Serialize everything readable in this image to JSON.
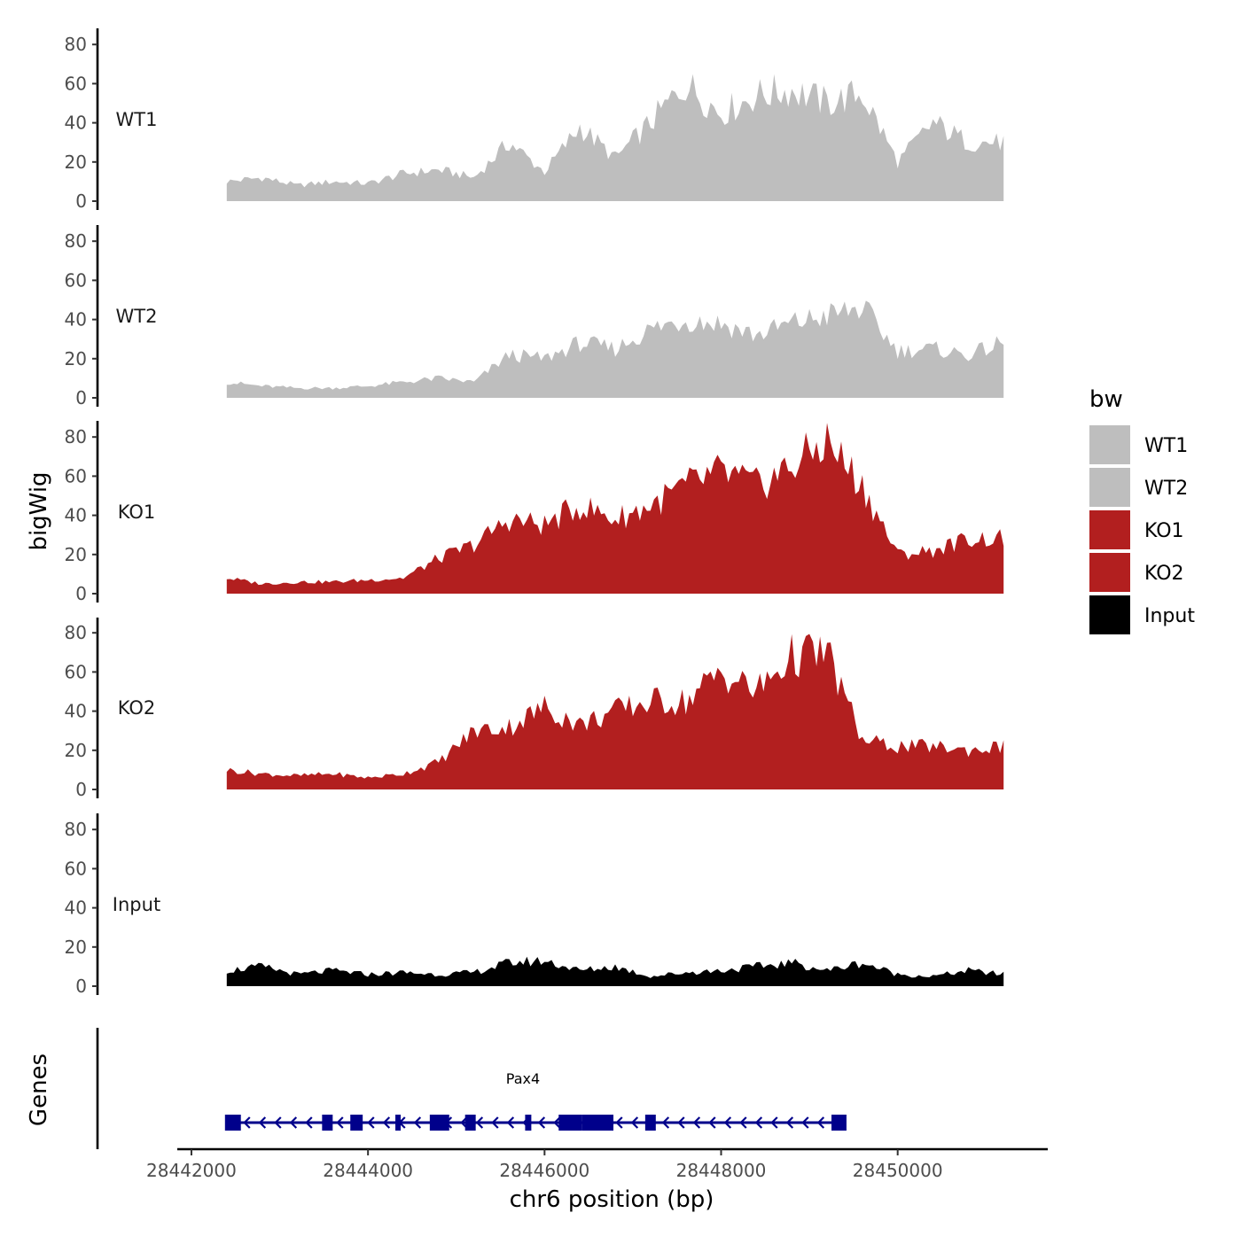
{
  "chart_data": {
    "type": "area",
    "xlabel": "chr6 position (bp)",
    "ylabel": "bigWig",
    "genes_label": "Genes",
    "xlim": [
      28441900,
      28451700
    ],
    "x_ticks": [
      28442000,
      28444000,
      28446000,
      28448000,
      28450000
    ],
    "x_tick_labels": [
      "28442000",
      "28444000",
      "28446000",
      "28448000",
      "28450000"
    ],
    "ylim": [
      0,
      90
    ],
    "y_ticks": [
      0,
      20,
      40,
      60,
      80
    ],
    "y_tick_labels": [
      "0",
      "20",
      "40",
      "60",
      "80"
    ],
    "legend": {
      "title": "bw",
      "items": [
        {
          "label": "WT1",
          "color": "#bebebe"
        },
        {
          "label": "WT2",
          "color": "#bebebe"
        },
        {
          "label": "KO1",
          "color": "#b21f1f"
        },
        {
          "label": "KO2",
          "color": "#b21f1f"
        },
        {
          "label": "Input",
          "color": "#000000"
        }
      ]
    },
    "x": [
      28442400,
      28442800,
      28443200,
      28443600,
      28444000,
      28444400,
      28444800,
      28445200,
      28445600,
      28446000,
      28446400,
      28446800,
      28447200,
      28447600,
      28448000,
      28448400,
      28448800,
      28449200,
      28449600,
      28450000,
      28450400,
      28450800,
      28451200
    ],
    "series": [
      {
        "name": "WT1",
        "color": "#bebebe",
        "values": [
          10,
          12,
          8,
          10,
          9,
          14,
          16,
          12,
          30,
          15,
          38,
          22,
          40,
          60,
          45,
          54,
          57,
          50,
          55,
          20,
          40,
          30,
          30
        ]
      },
      {
        "name": "WT2",
        "color": "#bebebe",
        "values": [
          8,
          6,
          5,
          5,
          6,
          8,
          10,
          8,
          22,
          20,
          28,
          25,
          35,
          40,
          38,
          32,
          38,
          42,
          46,
          24,
          25,
          22,
          28
        ]
      },
      {
        "name": "KO1",
        "color": "#b21f1f",
        "values": [
          8,
          5,
          6,
          6,
          7,
          8,
          18,
          25,
          38,
          35,
          45,
          38,
          45,
          55,
          62,
          55,
          65,
          78,
          55,
          20,
          22,
          28,
          28
        ]
      },
      {
        "name": "KO2",
        "color": "#b21f1f",
        "values": [
          10,
          8,
          7,
          8,
          6,
          8,
          14,
          30,
          32,
          42,
          33,
          40,
          45,
          45,
          60,
          50,
          68,
          70,
          25,
          22,
          22,
          20,
          22
        ]
      },
      {
        "name": "Input",
        "color": "#000000",
        "values": [
          8,
          10,
          6,
          8,
          6,
          7,
          6,
          7,
          12,
          13,
          8,
          10,
          5,
          7,
          8,
          10,
          12,
          8,
          12,
          6,
          5,
          8,
          6
        ]
      }
    ],
    "gene": {
      "name": "Pax4",
      "color": "#00008b",
      "start": 28442400,
      "end": 28449300,
      "strand": "-",
      "exons": [
        [
          28442380,
          28442560
        ],
        [
          28443480,
          28443600
        ],
        [
          28443800,
          28443940
        ],
        [
          28444310,
          28444360
        ],
        [
          28444700,
          28444920
        ],
        [
          28445100,
          28445220
        ],
        [
          28445780,
          28445850
        ],
        [
          28446160,
          28446420
        ],
        [
          28446420,
          28446780
        ],
        [
          28447140,
          28447260
        ],
        [
          28449250,
          28449420
        ]
      ]
    }
  }
}
